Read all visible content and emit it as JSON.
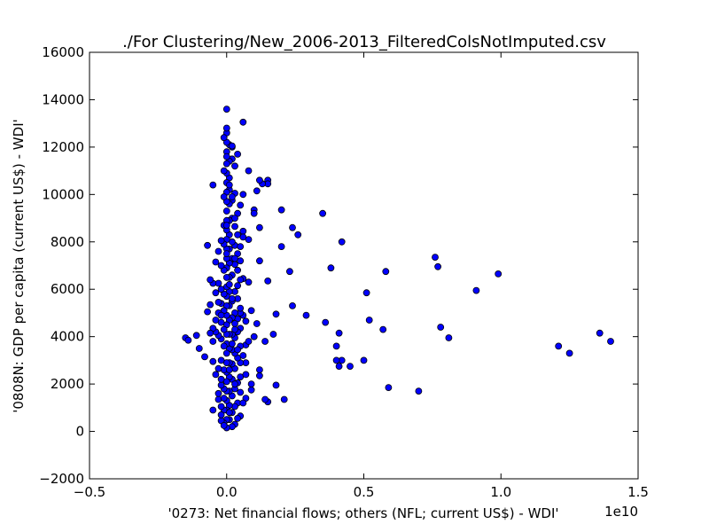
{
  "chart_data": {
    "type": "scatter",
    "title": "./For Clustering/New_2006-2013_FilteredColsNotImputed.csv",
    "xlabel": "'0273: Net financial flows; others  (NFL; current US$) - WDI'",
    "ylabel": "'0808N: GDP per capita  (current US$) - WDI'",
    "x_offset_label": "1e10",
    "xlim": [
      -0.5,
      1.5
    ],
    "ylim": [
      -2000,
      16000
    ],
    "x_scale": 10000000000.0,
    "xticks": [
      -0.5,
      0.0,
      0.5,
      1.0,
      1.5
    ],
    "xtick_labels": [
      "−0.5",
      "0.0",
      "0.5",
      "1.0",
      "1.5"
    ],
    "yticks": [
      -2000,
      0,
      2000,
      4000,
      6000,
      8000,
      10000,
      12000,
      14000,
      16000
    ],
    "ytick_labels": [
      "−2000",
      "0",
      "2000",
      "4000",
      "6000",
      "8000",
      "10000",
      "12000",
      "14000",
      "16000"
    ],
    "grid": false,
    "marker_color": "#0000ff",
    "marker_edge": "#000000",
    "points": [
      [
        1.4,
        3800
      ],
      [
        1.36,
        4150
      ],
      [
        1.25,
        3300
      ],
      [
        1.21,
        3600
      ],
      [
        0.99,
        6650
      ],
      [
        0.91,
        5950
      ],
      [
        0.81,
        3950
      ],
      [
        0.78,
        4400
      ],
      [
        0.77,
        6950
      ],
      [
        0.76,
        7350
      ],
      [
        0.7,
        1700
      ],
      [
        0.59,
        1850
      ],
      [
        0.58,
        6750
      ],
      [
        0.57,
        4300
      ],
      [
        0.52,
        4700
      ],
      [
        0.51,
        5850
      ],
      [
        0.5,
        3000
      ],
      [
        0.45,
        2750
      ],
      [
        0.42,
        8000
      ],
      [
        0.42,
        3000
      ],
      [
        0.41,
        2750
      ],
      [
        0.41,
        4150
      ],
      [
        0.4,
        3600
      ],
      [
        0.4,
        3000
      ],
      [
        0.38,
        6900
      ],
      [
        0.36,
        4600
      ],
      [
        0.35,
        9200
      ],
      [
        0.29,
        4900
      ],
      [
        0.26,
        8300
      ],
      [
        0.24,
        8600
      ],
      [
        0.24,
        5300
      ],
      [
        0.23,
        6750
      ],
      [
        0.21,
        1350
      ],
      [
        0.2,
        7800
      ],
      [
        0.2,
        9350
      ],
      [
        0.18,
        1950
      ],
      [
        0.18,
        4950
      ],
      [
        0.17,
        4100
      ],
      [
        0.15,
        10600
      ],
      [
        0.15,
        10450
      ],
      [
        0.15,
        6350
      ],
      [
        0.15,
        1250
      ],
      [
        0.14,
        3800
      ],
      [
        0.14,
        1350
      ],
      [
        0.13,
        10450
      ],
      [
        0.12,
        10600
      ],
      [
        0.12,
        8600
      ],
      [
        0.12,
        7200
      ],
      [
        0.12,
        2350
      ],
      [
        0.12,
        2600
      ],
      [
        0.11,
        4550
      ],
      [
        0.11,
        10150
      ],
      [
        0.1,
        9350
      ],
      [
        0.1,
        9200
      ],
      [
        0.1,
        4000
      ],
      [
        0.09,
        2000
      ],
      [
        0.09,
        1750
      ],
      [
        0.08,
        11000
      ],
      [
        0.08,
        8100
      ],
      [
        0.08,
        6300
      ],
      [
        0.07,
        4650
      ],
      [
        0.07,
        3650
      ],
      [
        0.07,
        2900
      ],
      [
        0.07,
        1400
      ],
      [
        0.06,
        13050
      ],
      [
        0.06,
        10000
      ],
      [
        0.06,
        8450
      ],
      [
        0.06,
        8200
      ],
      [
        0.06,
        6450
      ],
      [
        0.06,
        4900
      ],
      [
        0.05,
        9550
      ],
      [
        0.05,
        7200
      ],
      [
        0.05,
        6400
      ],
      [
        0.05,
        5000
      ],
      [
        0.05,
        4350
      ],
      [
        0.05,
        3600
      ],
      [
        0.05,
        2900
      ],
      [
        0.05,
        2300
      ],
      [
        0.05,
        1650
      ],
      [
        0.05,
        650
      ],
      [
        0.04,
        9200
      ],
      [
        0.04,
        8300
      ],
      [
        0.04,
        7500
      ],
      [
        0.04,
        6150
      ],
      [
        0.04,
        5600
      ],
      [
        0.04,
        4750
      ],
      [
        0.04,
        4200
      ],
      [
        0.04,
        3100
      ],
      [
        0.04,
        2050
      ],
      [
        0.04,
        1200
      ],
      [
        0.04,
        550
      ],
      [
        0.03,
        11200
      ],
      [
        0.03,
        10050
      ],
      [
        0.03,
        8650
      ],
      [
        0.03,
        7850
      ],
      [
        0.03,
        7050
      ],
      [
        0.03,
        5900
      ],
      [
        0.03,
        5000
      ],
      [
        0.03,
        4550
      ],
      [
        0.03,
        3950
      ],
      [
        0.03,
        3300
      ],
      [
        0.03,
        2650
      ],
      [
        0.03,
        1800
      ],
      [
        0.03,
        1050
      ],
      [
        0.03,
        300
      ],
      [
        0.02,
        12000
      ],
      [
        0.02,
        11500
      ],
      [
        0.02,
        9750
      ],
      [
        0.02,
        9000
      ],
      [
        0.02,
        8000
      ],
      [
        0.02,
        7300
      ],
      [
        0.02,
        6600
      ],
      [
        0.02,
        5500
      ],
      [
        0.02,
        4800
      ],
      [
        0.02,
        4100
      ],
      [
        0.02,
        3450
      ],
      [
        0.02,
        2850
      ],
      [
        0.02,
        2200
      ],
      [
        0.02,
        1500
      ],
      [
        0.02,
        800
      ],
      [
        0.02,
        200
      ],
      [
        0.01,
        12100
      ],
      [
        0.01,
        11400
      ],
      [
        0.01,
        10700
      ],
      [
        0.01,
        10200
      ],
      [
        0.01,
        9600
      ],
      [
        0.01,
        8900
      ],
      [
        0.01,
        8300
      ],
      [
        0.01,
        7700
      ],
      [
        0.01,
        7100
      ],
      [
        0.01,
        6500
      ],
      [
        0.01,
        5900
      ],
      [
        0.01,
        5300
      ],
      [
        0.01,
        4700
      ],
      [
        0.01,
        4100
      ],
      [
        0.01,
        3500
      ],
      [
        0.01,
        2900
      ],
      [
        0.01,
        2300
      ],
      [
        0.01,
        1700
      ],
      [
        0.01,
        1100
      ],
      [
        0.01,
        500
      ],
      [
        0.0,
        13600
      ],
      [
        0.0,
        12600
      ],
      [
        0.0,
        12200
      ],
      [
        0.0,
        11800
      ],
      [
        0.0,
        11300
      ],
      [
        0.0,
        10900
      ],
      [
        0.0,
        10500
      ],
      [
        0.0,
        10100
      ],
      [
        0.0,
        9700
      ],
      [
        0.0,
        9300
      ],
      [
        0.0,
        8900
      ],
      [
        0.0,
        8500
      ],
      [
        0.0,
        8100
      ],
      [
        0.0,
        7700
      ],
      [
        0.0,
        7300
      ],
      [
        0.0,
        6900
      ],
      [
        0.0,
        6500
      ],
      [
        0.0,
        6100
      ],
      [
        0.0,
        5700
      ],
      [
        0.0,
        5300
      ],
      [
        0.0,
        4900
      ],
      [
        0.0,
        4500
      ],
      [
        0.0,
        4100
      ],
      [
        0.0,
        3700
      ],
      [
        0.0,
        3300
      ],
      [
        0.0,
        2900
      ],
      [
        0.0,
        2500
      ],
      [
        0.0,
        2100
      ],
      [
        0.0,
        1700
      ],
      [
        0.0,
        1300
      ],
      [
        0.0,
        900
      ],
      [
        0.0,
        500
      ],
      [
        0.0,
        150
      ],
      [
        -0.01,
        11000
      ],
      [
        -0.01,
        9900
      ],
      [
        -0.01,
        8700
      ],
      [
        -0.01,
        7900
      ],
      [
        -0.01,
        6800
      ],
      [
        -0.01,
        5800
      ],
      [
        -0.01,
        5100
      ],
      [
        -0.01,
        4300
      ],
      [
        -0.01,
        3600
      ],
      [
        -0.01,
        2600
      ],
      [
        -0.01,
        1800
      ],
      [
        -0.01,
        900
      ],
      [
        -0.01,
        350
      ],
      [
        -0.02,
        8050
      ],
      [
        -0.02,
        7000
      ],
      [
        -0.02,
        6000
      ],
      [
        -0.02,
        5400
      ],
      [
        -0.02,
        4600
      ],
      [
        -0.02,
        3900
      ],
      [
        -0.02,
        3000
      ],
      [
        -0.02,
        1950
      ],
      [
        -0.02,
        1050
      ],
      [
        -0.02,
        450
      ],
      [
        -0.03,
        7600
      ],
      [
        -0.03,
        6250
      ],
      [
        -0.03,
        5450
      ],
      [
        -0.03,
        4050
      ],
      [
        -0.03,
        2650
      ],
      [
        -0.03,
        1350
      ],
      [
        -0.04,
        7150
      ],
      [
        -0.04,
        5850
      ],
      [
        -0.04,
        4200
      ],
      [
        -0.05,
        10400
      ],
      [
        -0.05,
        6250
      ],
      [
        -0.05,
        4350
      ],
      [
        -0.05,
        2950
      ],
      [
        -0.05,
        900
      ],
      [
        -0.06,
        4150
      ],
      [
        -0.06,
        5350
      ],
      [
        -0.07,
        5050
      ],
      [
        -0.05,
        3800
      ],
      [
        -0.08,
        3150
      ],
      [
        -0.07,
        7850
      ],
      [
        -0.1,
        3500
      ],
      [
        -0.11,
        4050
      ],
      [
        -0.15,
        3950
      ],
      [
        -0.14,
        3850
      ],
      [
        -0.06,
        6400
      ],
      [
        -0.04,
        2400
      ],
      [
        -0.03,
        1600
      ],
      [
        -0.02,
        700
      ],
      [
        -0.01,
        250
      ],
      [
        0.02,
        9900
      ],
      [
        0.03,
        7300
      ],
      [
        0.04,
        6800
      ],
      [
        0.05,
        5200
      ],
      [
        0.06,
        3200
      ],
      [
        0.07,
        2400
      ],
      [
        0.03,
        4300
      ],
      [
        0.02,
        3700
      ],
      [
        0.01,
        2600
      ],
      [
        0.06,
        1200
      ],
      [
        0.08,
        3800
      ],
      [
        0.09,
        5100
      ],
      [
        0.05,
        7800
      ],
      [
        0.03,
        9000
      ],
      [
        0.01,
        10400
      ],
      [
        0.0,
        11600
      ],
      [
        0.02,
        12050
      ],
      [
        0.04,
        11700
      ],
      [
        -0.01,
        12400
      ],
      [
        0.0,
        12800
      ],
      [
        -0.03,
        5000
      ],
      [
        -0.02,
        4900
      ],
      [
        -0.04,
        4700
      ],
      [
        -0.02,
        2200
      ],
      [
        -0.01,
        1400
      ],
      [
        0.01,
        800
      ],
      [
        0.03,
        2000
      ],
      [
        0.04,
        3450
      ],
      [
        0.02,
        5600
      ],
      [
        0.01,
        6200
      ],
      [
        0.0,
        7500
      ],
      [
        0.0,
        8700
      ]
    ]
  }
}
